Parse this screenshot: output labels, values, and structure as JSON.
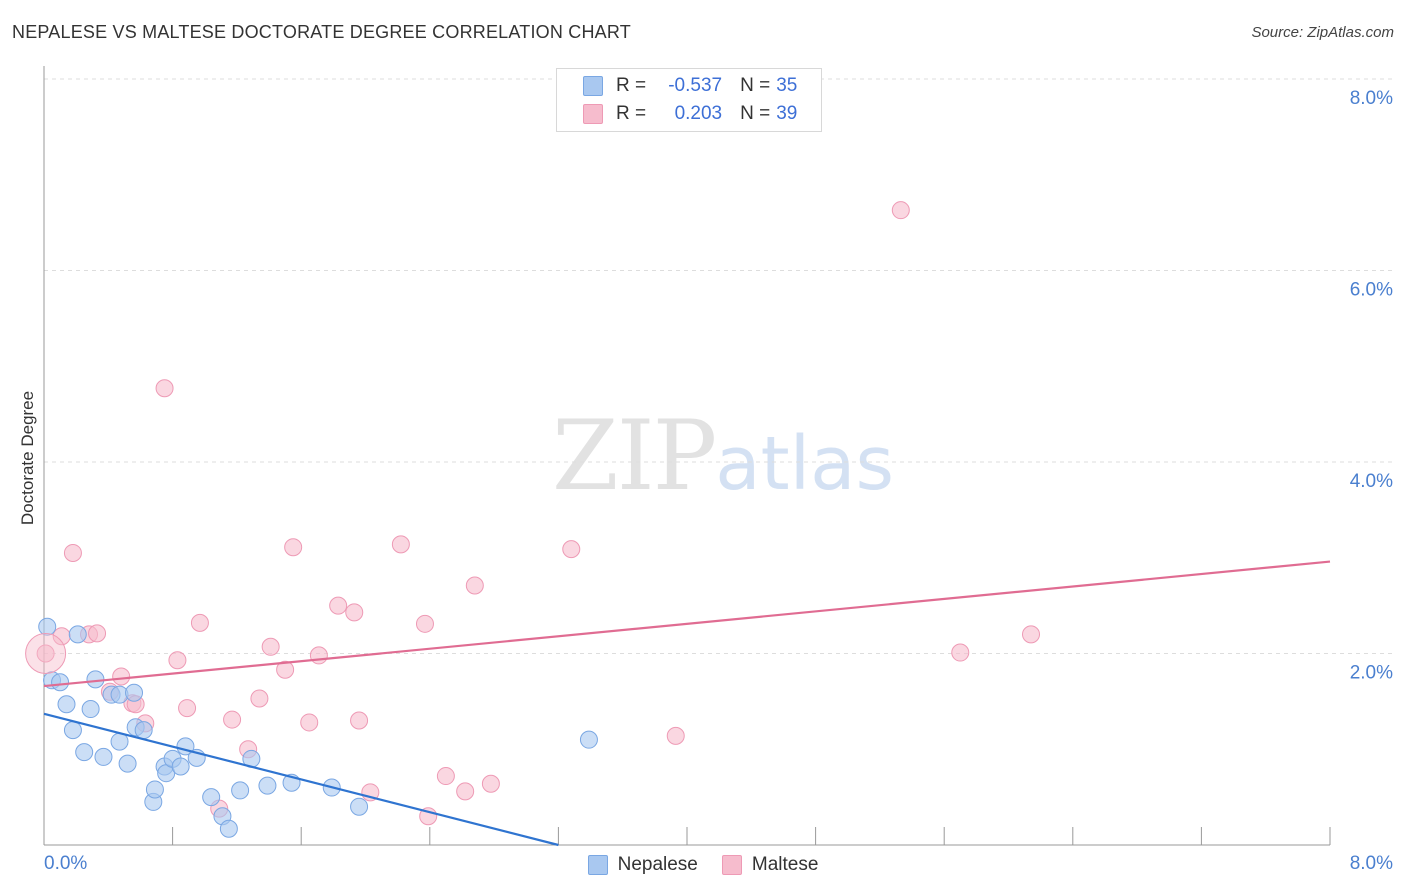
{
  "header": {
    "title": "NEPALESE VS MALTESE DOCTORATE DEGREE CORRELATION CHART",
    "source": "Source: ZipAtlas.com"
  },
  "watermark": {
    "part1": "ZIP",
    "part2": "atlas"
  },
  "legend": {
    "rows": [
      {
        "r_label": "R = ",
        "r_value": "-0.537",
        "n_label": "N = ",
        "n_value": "35"
      },
      {
        "r_label": "R = ",
        "r_value": "0.203",
        "n_label": "N = ",
        "n_value": "39"
      }
    ]
  },
  "colors": {
    "nepalese_fill": "#a9c8f0",
    "nepalese_stroke": "#7aa7e3",
    "nepalese_line": "#2f74d0",
    "maltese_fill": "#f6bccd",
    "maltese_stroke": "#ee9ab5",
    "maltese_line": "#e06c92",
    "tick": "#4a7fcf",
    "grid": "#dddddd"
  },
  "chart_data": {
    "type": "scatter",
    "title": "NEPALESE VS MALTESE DOCTORATE DEGREE CORRELATION CHART",
    "xlabel": "",
    "ylabel": "Doctorate Degree",
    "xlim": [
      0,
      8
    ],
    "ylim": [
      0,
      8
    ],
    "x_tick_labels": [
      "0.0%",
      "8.0%"
    ],
    "y_ticks": [
      2,
      4,
      6,
      8
    ],
    "y_tick_labels": [
      "2.0%",
      "4.0%",
      "6.0%",
      "8.0%"
    ],
    "grid": true,
    "legend_position": "top-center",
    "series": [
      {
        "name": "Nepalese",
        "r": -0.537,
        "n": 35,
        "trend": {
          "x0": 0.0,
          "y0": 1.37,
          "x1": 3.2,
          "y1": 0.0
        },
        "points": [
          [
            0.02,
            2.28
          ],
          [
            0.05,
            1.72
          ],
          [
            0.1,
            1.7
          ],
          [
            0.14,
            1.47
          ],
          [
            0.18,
            1.2
          ],
          [
            0.21,
            2.2
          ],
          [
            0.25,
            0.97
          ],
          [
            0.29,
            1.42
          ],
          [
            0.32,
            1.73
          ],
          [
            0.37,
            0.92
          ],
          [
            0.42,
            1.57
          ],
          [
            0.47,
            1.57
          ],
          [
            0.47,
            1.08
          ],
          [
            0.52,
            0.85
          ],
          [
            0.56,
            1.59
          ],
          [
            0.57,
            1.23
          ],
          [
            0.62,
            1.2
          ],
          [
            0.68,
            0.45
          ],
          [
            0.69,
            0.58
          ],
          [
            0.75,
            0.82
          ],
          [
            0.76,
            0.75
          ],
          [
            0.8,
            0.9
          ],
          [
            0.85,
            0.82
          ],
          [
            0.88,
            1.03
          ],
          [
            0.95,
            0.91
          ],
          [
            1.04,
            0.5
          ],
          [
            1.11,
            0.3
          ],
          [
            1.15,
            0.17
          ],
          [
            1.22,
            0.57
          ],
          [
            1.29,
            0.9
          ],
          [
            1.39,
            0.62
          ],
          [
            1.54,
            0.65
          ],
          [
            1.79,
            0.6
          ],
          [
            1.96,
            0.4
          ],
          [
            3.39,
            1.1
          ]
        ]
      },
      {
        "name": "Maltese",
        "r": 0.203,
        "n": 39,
        "trend": {
          "x0": 0.0,
          "y0": 1.66,
          "x1": 8.0,
          "y1": 2.96
        },
        "points": [
          [
            0.01,
            2.0
          ],
          [
            0.11,
            2.18
          ],
          [
            0.18,
            3.05
          ],
          [
            0.28,
            2.2
          ],
          [
            0.33,
            2.21
          ],
          [
            0.41,
            1.6
          ],
          [
            0.48,
            1.76
          ],
          [
            0.55,
            1.48
          ],
          [
            0.57,
            1.47
          ],
          [
            0.63,
            1.27
          ],
          [
            0.75,
            4.77
          ],
          [
            0.83,
            1.93
          ],
          [
            0.89,
            1.43
          ],
          [
            0.97,
            2.32
          ],
          [
            1.09,
            0.38
          ],
          [
            1.17,
            1.31
          ],
          [
            1.27,
            1.0
          ],
          [
            1.34,
            1.53
          ],
          [
            1.41,
            2.07
          ],
          [
            1.5,
            1.83
          ],
          [
            1.55,
            3.11
          ],
          [
            1.65,
            1.28
          ],
          [
            1.71,
            1.98
          ],
          [
            1.83,
            2.5
          ],
          [
            1.93,
            2.43
          ],
          [
            1.96,
            1.3
          ],
          [
            2.03,
            0.55
          ],
          [
            2.22,
            3.14
          ],
          [
            2.37,
            2.31
          ],
          [
            2.39,
            0.3
          ],
          [
            2.5,
            0.72
          ],
          [
            2.62,
            0.56
          ],
          [
            2.68,
            2.71
          ],
          [
            2.78,
            0.64
          ],
          [
            3.28,
            3.09
          ],
          [
            3.93,
            1.14
          ],
          [
            5.33,
            6.63
          ],
          [
            5.7,
            2.01
          ],
          [
            6.14,
            2.2
          ]
        ]
      }
    ]
  }
}
